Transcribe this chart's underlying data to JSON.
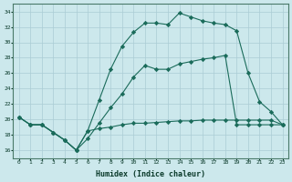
{
  "xlabel": "Humidex (Indice chaleur)",
  "background_color": "#cce8ec",
  "grid_color": "#aaccd4",
  "line_color": "#1a6b5a",
  "xlim": [
    -0.5,
    23.5
  ],
  "ylim": [
    15,
    35
  ],
  "yticks": [
    16,
    18,
    20,
    22,
    24,
    26,
    28,
    30,
    32,
    34
  ],
  "xticks": [
    0,
    1,
    2,
    3,
    4,
    5,
    6,
    7,
    8,
    9,
    10,
    11,
    12,
    13,
    14,
    15,
    16,
    17,
    18,
    19,
    20,
    21,
    22,
    23
  ],
  "line1_x": [
    0,
    1,
    2,
    3,
    4,
    5,
    6,
    7,
    8,
    9,
    10,
    11,
    12,
    13,
    14,
    15,
    16,
    17,
    18,
    19,
    20,
    21,
    22,
    23
  ],
  "line1_y": [
    20.3,
    19.3,
    19.3,
    18.3,
    17.3,
    16.0,
    17.5,
    19.5,
    21.5,
    23.3,
    25.5,
    27.0,
    26.5,
    26.5,
    27.2,
    27.5,
    27.8,
    28.0,
    28.3,
    19.3,
    19.3,
    19.3,
    19.3,
    19.3
  ],
  "line2_x": [
    0,
    1,
    2,
    3,
    4,
    5,
    6,
    7,
    8,
    9,
    10,
    11,
    12,
    13,
    14,
    15,
    16,
    17,
    18,
    19,
    20,
    21,
    22,
    23
  ],
  "line2_y": [
    20.3,
    19.3,
    19.3,
    18.3,
    17.3,
    16.0,
    18.5,
    22.5,
    26.5,
    29.5,
    31.3,
    32.5,
    32.5,
    32.3,
    33.8,
    33.3,
    32.8,
    32.5,
    32.3,
    31.5,
    26.0,
    22.3,
    21.0,
    19.3
  ],
  "line3_x": [
    0,
    1,
    2,
    3,
    4,
    5,
    6,
    7,
    8,
    9,
    10,
    11,
    12,
    13,
    14,
    15,
    16,
    17,
    18,
    19,
    20,
    21,
    22,
    23
  ],
  "line3_y": [
    20.3,
    19.3,
    19.3,
    18.3,
    17.3,
    16.0,
    18.5,
    18.8,
    19.0,
    19.3,
    19.5,
    19.5,
    19.6,
    19.7,
    19.8,
    19.8,
    19.9,
    19.9,
    19.9,
    19.9,
    19.9,
    19.9,
    19.9,
    19.3
  ]
}
